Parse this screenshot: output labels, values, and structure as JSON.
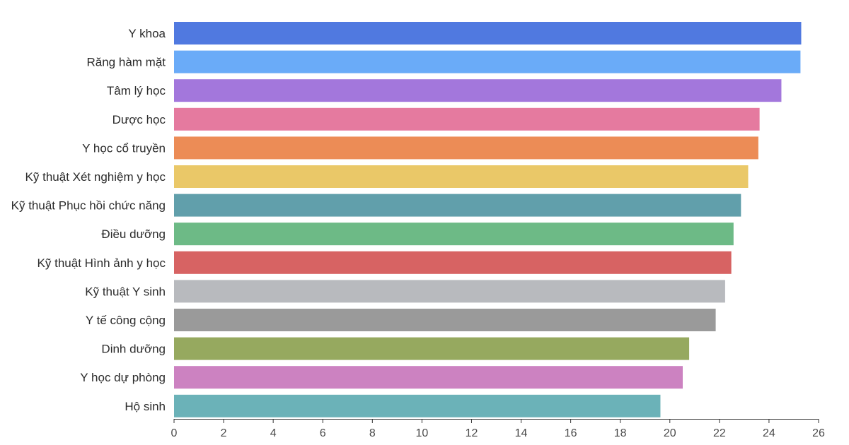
{
  "chart_data": {
    "type": "bar",
    "orientation": "horizontal",
    "title": "",
    "xlabel": "",
    "ylabel": "",
    "xlim": [
      0,
      26
    ],
    "x_ticks": [
      "0",
      "2",
      "4",
      "6",
      "8",
      "10",
      "12",
      "14",
      "16",
      "18",
      "20",
      "22",
      "24",
      "26"
    ],
    "grid": false,
    "categories": [
      "Y khoa",
      "Răng hàm mặt",
      "Tâm lý học",
      "Dược học",
      "Y học cổ truyền",
      "Kỹ thuật Xét nghiệm y học",
      "Kỹ thuật Phục hồi chức năng",
      "Điều dưỡng",
      "Kỹ thuật Hình ảnh y học",
      "Kỹ thuật Y sinh",
      "Y tế công cộng",
      "Dinh dưỡng",
      "Y học dự phòng",
      "Hộ sinh"
    ],
    "values": [
      25.3,
      25.27,
      24.5,
      23.62,
      23.57,
      23.16,
      22.87,
      22.57,
      22.48,
      22.23,
      21.85,
      20.78,
      20.52,
      19.62
    ],
    "colors": [
      "#5079e0",
      "#6aabf8",
      "#a377dc",
      "#e57a9f",
      "#ec8c56",
      "#eac868",
      "#619fab",
      "#6dba86",
      "#d76363",
      "#b8babe",
      "#9a9a9a",
      "#96a95f",
      "#cc82c1",
      "#6bb2b8"
    ]
  }
}
